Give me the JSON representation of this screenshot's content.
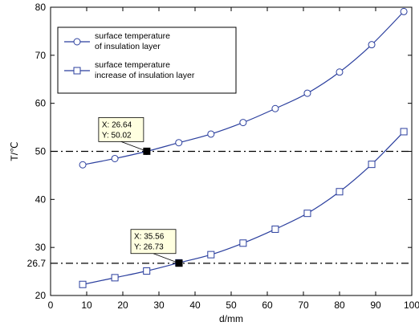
{
  "chart_data": {
    "type": "line",
    "xlabel": "d/mm",
    "ylabel": "T/℃",
    "xlim": [
      0,
      100
    ],
    "ylim": [
      20,
      80
    ],
    "xticks": [
      0,
      10,
      20,
      30,
      40,
      50,
      60,
      70,
      80,
      90,
      100
    ],
    "yticks": [
      20,
      30,
      40,
      50,
      60,
      70,
      80
    ],
    "extra_ytick_label": "26.7",
    "grid": false,
    "legend_position": "top-left",
    "series": [
      {
        "name": "surface temperature of insulation layer",
        "legend_lines": [
          "surface temperature",
          "of insulation layer"
        ],
        "marker": "circle",
        "color": "#2b3f9e",
        "x": [
          8.9,
          17.8,
          26.6,
          35.5,
          44.4,
          53.3,
          62.2,
          71.1,
          80.0,
          88.9,
          97.8
        ],
        "y": [
          47.2,
          48.5,
          50.0,
          51.8,
          53.6,
          56.0,
          58.9,
          62.1,
          66.5,
          72.2,
          79.1
        ]
      },
      {
        "name": "surface temperature increase of insulation layer",
        "legend_lines": [
          "surface temperature",
          "increase of insulation layer"
        ],
        "marker": "square",
        "color": "#2b3f9e",
        "x": [
          8.9,
          17.8,
          26.6,
          35.5,
          44.4,
          53.3,
          62.2,
          71.1,
          80.0,
          88.9,
          97.8
        ],
        "y": [
          22.3,
          23.7,
          25.1,
          26.8,
          28.5,
          30.9,
          33.8,
          37.1,
          41.6,
          47.3,
          54.1
        ]
      }
    ],
    "reference_lines": [
      {
        "axis": "y",
        "value": 50,
        "style": "dash-dot"
      },
      {
        "axis": "y",
        "value": 26.7,
        "style": "dash-dot"
      }
    ],
    "datatips": [
      {
        "x": 26.64,
        "y": 50.02,
        "x_text": "X: 26.64",
        "y_text": "Y: 50.02"
      },
      {
        "x": 35.56,
        "y": 26.73,
        "x_text": "X: 35.56",
        "y_text": "Y: 26.73"
      }
    ]
  }
}
